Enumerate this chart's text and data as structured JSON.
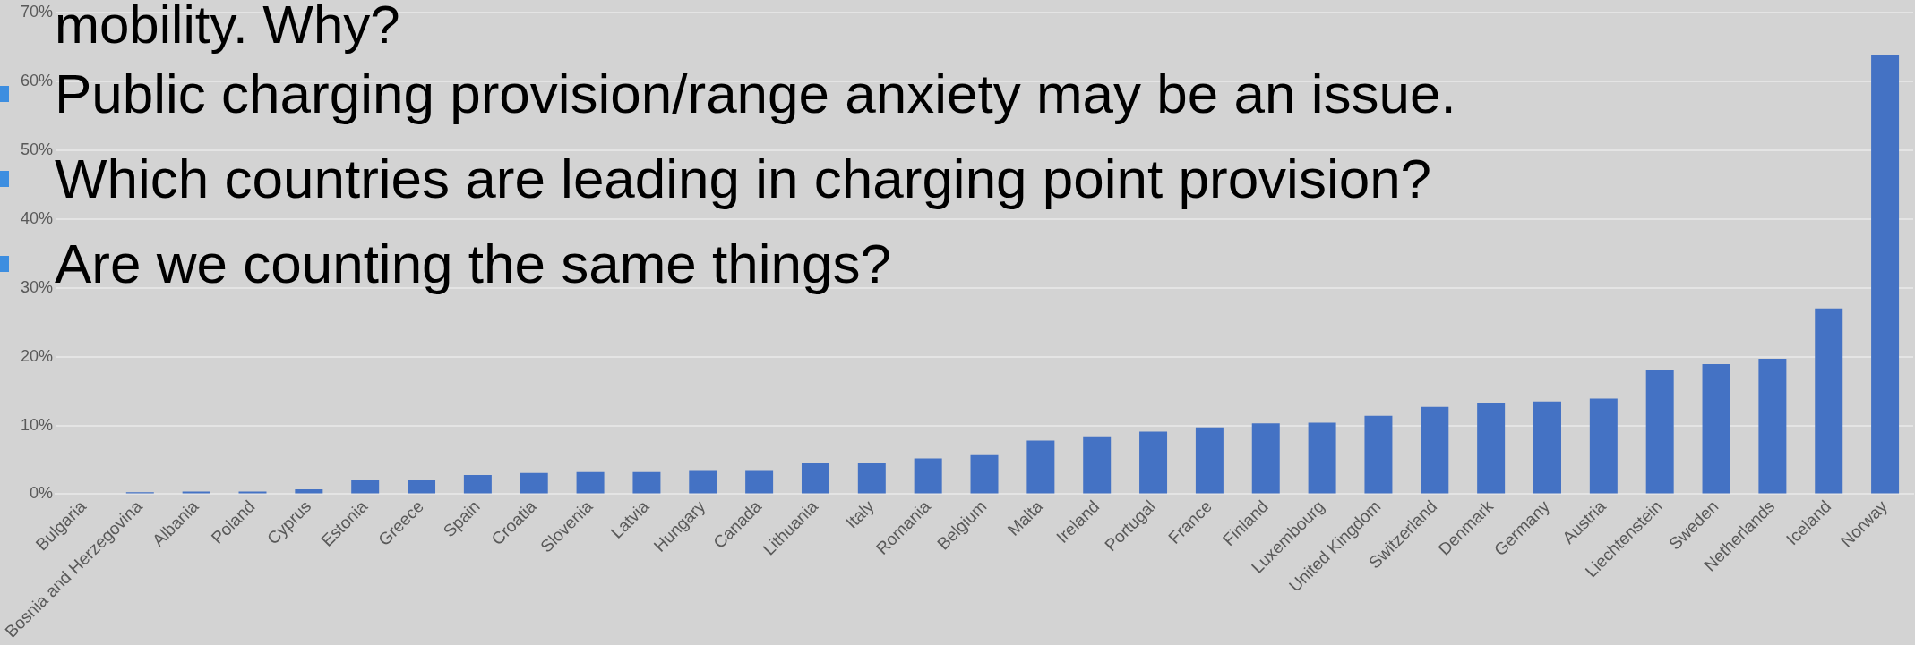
{
  "chart_data": {
    "type": "bar",
    "title": "mobility. Why?",
    "annotations": [
      "Public charging provision/range anxiety may be an issue.",
      "Which countries are leading in charging point provision?",
      "Are we counting the same things?"
    ],
    "categories": [
      "Bulgaria",
      "Bosnia and Herzegovina",
      "Albania",
      "Poland",
      "Cyprus",
      "Estonia",
      "Greece",
      "Spain",
      "Croatia",
      "Slovenia",
      "Latvia",
      "Hungary",
      "Canada",
      "Lithuania",
      "Italy",
      "Romania",
      "Belgium",
      "Malta",
      "Ireland",
      "Portugal",
      "France",
      "Finland",
      "Luxembourg",
      "United Kingdom",
      "Switzerland",
      "Denmark",
      "Germany",
      "Austria",
      "Liechtenstein",
      "Sweden",
      "Netherlands",
      "Iceland",
      "Norway"
    ],
    "values": [
      0,
      0.3,
      0.4,
      0.4,
      0.7,
      2.1,
      2.1,
      2.8,
      3.1,
      3.2,
      3.2,
      3.5,
      3.5,
      4.5,
      4.5,
      5.2,
      5.7,
      7.8,
      8.4,
      9.1,
      9.7,
      10.3,
      10.4,
      11.4,
      12.7,
      13.3,
      13.5,
      13.9,
      18.0,
      18.9,
      19.7,
      27.0,
      63.8
    ],
    "color": "#4472c4",
    "ylim": [
      0,
      70
    ],
    "yticks": [
      {
        "value": 0,
        "label": "0%"
      },
      {
        "value": 10,
        "label": "10%"
      },
      {
        "value": 20,
        "label": "20%"
      },
      {
        "value": 30,
        "label": "30%"
      },
      {
        "value": 40,
        "label": "40%"
      },
      {
        "value": 50,
        "label": "50%"
      },
      {
        "value": 60,
        "label": "60%"
      },
      {
        "value": 70,
        "label": "70%"
      }
    ],
    "grid": "y",
    "legend": false
  }
}
